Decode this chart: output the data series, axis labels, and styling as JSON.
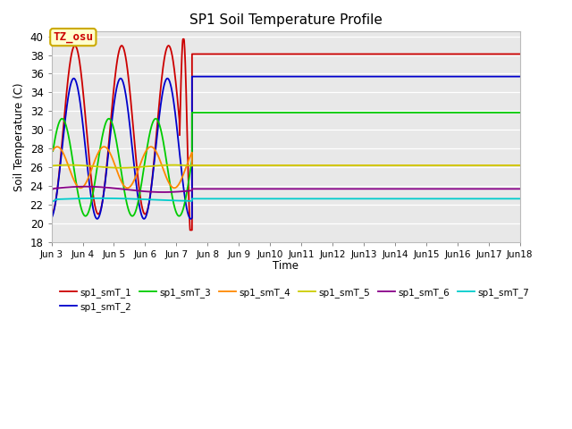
{
  "title": "SP1 Soil Temperature Profile",
  "xlabel": "Time",
  "ylabel": "Soil Temperature (C)",
  "ylim": [
    18,
    40.5
  ],
  "yticks": [
    18,
    20,
    22,
    24,
    26,
    28,
    30,
    32,
    34,
    36,
    38,
    40
  ],
  "background_color": "#e8e8e8",
  "annotation_text": "TZ_osu",
  "annotation_color": "#cc0000",
  "annotation_bg": "#ffffcc",
  "annotation_border": "#ccaa00",
  "flat_T1": 38.1,
  "flat_T2": 35.7,
  "flat_T3": 31.85,
  "flat_T4": 26.2,
  "flat_T5": 26.2,
  "flat_T6": 23.7,
  "flat_T7": 22.65,
  "series_colors": [
    "#cc0000",
    "#0000cc",
    "#00cc00",
    "#ff8800",
    "#cccc00",
    "#880088",
    "#00cccc"
  ],
  "series_labels": [
    "sp1_smT_1",
    "sp1_smT_2",
    "sp1_smT_3",
    "sp1_smT_4",
    "sp1_smT_5",
    "sp1_smT_6",
    "sp1_smT_7"
  ],
  "lw": 1.3
}
